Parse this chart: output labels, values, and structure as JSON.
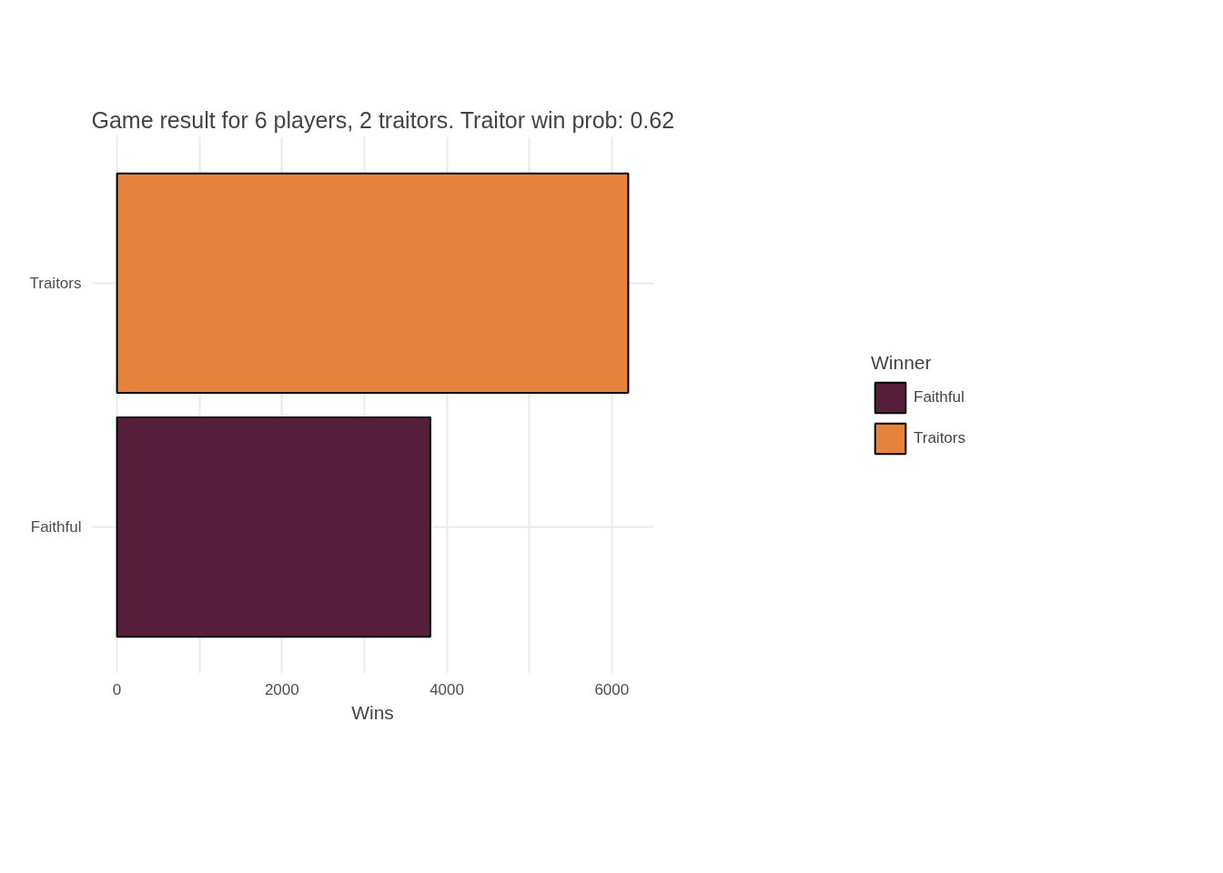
{
  "chart_data": {
    "type": "bar",
    "orientation": "horizontal",
    "title": "Game result for 6 players, 2 traitors. Traitor win prob: 0.62",
    "xlabel": "Wins",
    "legend_title": "Winner",
    "categories": [
      "Traitors",
      "Faithful"
    ],
    "series": [
      {
        "name": "Faithful",
        "color": "#571f3c",
        "values": [
          null,
          3800
        ]
      },
      {
        "name": "Traitors",
        "color": "#e8833e",
        "values": [
          6200,
          null
        ]
      }
    ],
    "xlim": [
      -310,
      6510
    ],
    "xticks": [
      0,
      {
        "value": 1000,
        "label": null
      },
      2000,
      {
        "value": 3000,
        "label": null
      },
      4000,
      {
        "value": 5000,
        "label": null
      },
      6000
    ],
    "grid": true,
    "legend": "right"
  }
}
